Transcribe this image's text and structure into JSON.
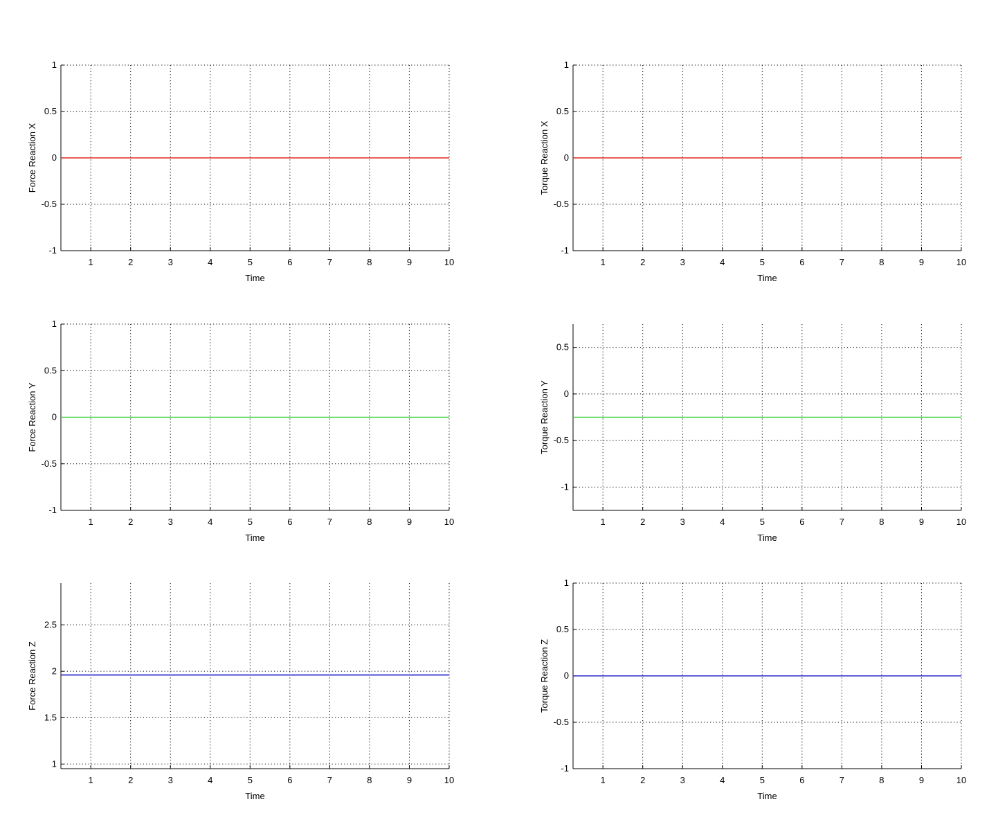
{
  "figure": {
    "background": "#ffffff",
    "axes_color": "#000000",
    "grid_color": "#000000"
  },
  "chart_data": [
    {
      "type": "line",
      "xlabel": "Time",
      "ylabel": "Force Reaction X",
      "xlim": [
        0.25,
        10
      ],
      "ylim": [
        -1,
        1
      ],
      "xticks": [
        "1",
        "2",
        "3",
        "4",
        "5",
        "6",
        "7",
        "8",
        "9",
        "10"
      ],
      "yticks": [
        "-1",
        "-0.5",
        "0",
        "0.5",
        "1"
      ],
      "xtick_values": [
        1,
        2,
        3,
        4,
        5,
        6,
        7,
        8,
        9,
        10
      ],
      "ytick_values": [
        -1,
        -0.5,
        0,
        0.5,
        1
      ],
      "grid": true,
      "series": [
        {
          "color": "#e8261b",
          "x": [
            0.25,
            10
          ],
          "y": [
            0,
            0
          ]
        }
      ]
    },
    {
      "type": "line",
      "xlabel": "Time",
      "ylabel": "Torque Reaction X",
      "xlim": [
        0.25,
        10
      ],
      "ylim": [
        -1,
        1
      ],
      "xticks": [
        "1",
        "2",
        "3",
        "4",
        "5",
        "6",
        "7",
        "8",
        "9",
        "10"
      ],
      "yticks": [
        "-1",
        "-0.5",
        "0",
        "0.5",
        "1"
      ],
      "xtick_values": [
        1,
        2,
        3,
        4,
        5,
        6,
        7,
        8,
        9,
        10
      ],
      "ytick_values": [
        -1,
        -0.5,
        0,
        0.5,
        1
      ],
      "grid": true,
      "series": [
        {
          "color": "#e8261b",
          "x": [
            0.25,
            10
          ],
          "y": [
            0,
            0
          ]
        }
      ]
    },
    {
      "type": "line",
      "xlabel": "Time",
      "ylabel": "Force Reaction Y",
      "xlim": [
        0.25,
        10
      ],
      "ylim": [
        -1,
        1
      ],
      "xticks": [
        "1",
        "2",
        "3",
        "4",
        "5",
        "6",
        "7",
        "8",
        "9",
        "10"
      ],
      "yticks": [
        "-1",
        "-0.5",
        "0",
        "0.5",
        "1"
      ],
      "xtick_values": [
        1,
        2,
        3,
        4,
        5,
        6,
        7,
        8,
        9,
        10
      ],
      "ytick_values": [
        -1,
        -0.5,
        0,
        0.5,
        1
      ],
      "grid": true,
      "series": [
        {
          "color": "#3fd03f",
          "x": [
            0.25,
            10
          ],
          "y": [
            0,
            0
          ]
        }
      ]
    },
    {
      "type": "line",
      "xlabel": "Time",
      "ylabel": "Torque Reaction Y",
      "xlim": [
        0.25,
        10
      ],
      "ylim": [
        -1.25,
        0.75
      ],
      "xticks": [
        "1",
        "2",
        "3",
        "4",
        "5",
        "6",
        "7",
        "8",
        "9",
        "10"
      ],
      "yticks": [
        "-1",
        "-0.5",
        "0",
        "0.5"
      ],
      "xtick_values": [
        1,
        2,
        3,
        4,
        5,
        6,
        7,
        8,
        9,
        10
      ],
      "ytick_values": [
        -1,
        -0.5,
        0,
        0.5
      ],
      "grid": true,
      "series": [
        {
          "color": "#3fd03f",
          "x": [
            0.25,
            10
          ],
          "y": [
            -0.25,
            -0.25
          ]
        }
      ]
    },
    {
      "type": "line",
      "xlabel": "Time",
      "ylabel": "Force Reaction Z",
      "xlim": [
        0.25,
        10
      ],
      "ylim": [
        0.95,
        2.95
      ],
      "xticks": [
        "1",
        "2",
        "3",
        "4",
        "5",
        "6",
        "7",
        "8",
        "9",
        "10"
      ],
      "yticks": [
        "1",
        "1.5",
        "2",
        "2.5"
      ],
      "xtick_values": [
        1,
        2,
        3,
        4,
        5,
        6,
        7,
        8,
        9,
        10
      ],
      "ytick_values": [
        1,
        1.5,
        2,
        2.5
      ],
      "grid": true,
      "series": [
        {
          "color": "#2a2acd",
          "x": [
            0.25,
            10
          ],
          "y": [
            1.96,
            1.96
          ]
        }
      ]
    },
    {
      "type": "line",
      "xlabel": "Time",
      "ylabel": "Torque Reaction Z",
      "xlim": [
        0.25,
        10
      ],
      "ylim": [
        -1,
        1
      ],
      "xticks": [
        "1",
        "2",
        "3",
        "4",
        "5",
        "6",
        "7",
        "8",
        "9",
        "10"
      ],
      "yticks": [
        "-1",
        "-0.5",
        "0",
        "0.5",
        "1"
      ],
      "xtick_values": [
        1,
        2,
        3,
        4,
        5,
        6,
        7,
        8,
        9,
        10
      ],
      "ytick_values": [
        -1,
        -0.5,
        0,
        0.5,
        1
      ],
      "grid": true,
      "series": [
        {
          "color": "#2a2acd",
          "x": [
            0.25,
            10
          ],
          "y": [
            0,
            0
          ]
        }
      ]
    }
  ]
}
